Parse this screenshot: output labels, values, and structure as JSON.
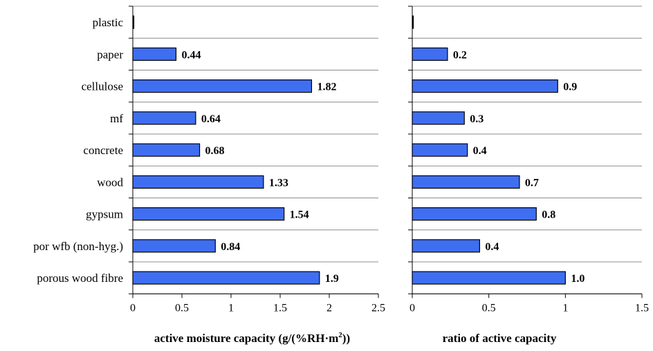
{
  "chart_data": [
    {
      "type": "bar",
      "orientation": "horizontal",
      "categories": [
        "plastic",
        "paper",
        "cellulose",
        "mf",
        "concrete",
        "wood",
        "gypsum",
        "por wfb (non-hyg.)",
        "porous wood fibre"
      ],
      "values": [
        0.0,
        0.44,
        1.82,
        0.64,
        0.68,
        1.33,
        1.54,
        0.84,
        1.9
      ],
      "value_labels": [
        "",
        "0.44",
        "1.82",
        "0.64",
        "0.68",
        "1.33",
        "1.54",
        "0.84",
        "1.9"
      ],
      "xlabel_main": "active moisture capacity (g/(%RH·m",
      "xlabel_sup": "2",
      "xlabel_tail": "))",
      "xlim": [
        0,
        2.5
      ],
      "xticks": [
        "0",
        "0.5",
        "1",
        "1.5",
        "2",
        "2.5"
      ],
      "bar_color": "#3f6ef0",
      "grid": "horizontal separators"
    },
    {
      "type": "bar",
      "orientation": "horizontal",
      "categories": [
        "plastic",
        "paper",
        "cellulose",
        "mf",
        "concrete",
        "wood",
        "gypsum",
        "por wfb (non-hyg.)",
        "porous wood fibre"
      ],
      "values": [
        0.0,
        0.23,
        0.95,
        0.34,
        0.36,
        0.7,
        0.81,
        0.44,
        1.0
      ],
      "value_labels": [
        "",
        "0.2",
        "0.9",
        "0.3",
        "0.4",
        "0.7",
        "0.8",
        "0.4",
        "1.0"
      ],
      "xlabel": "ratio of active capacity",
      "xlim": [
        0,
        1.5
      ],
      "xticks": [
        "0",
        "0.5",
        "1",
        "1.5"
      ],
      "bar_color": "#3f6ef0",
      "grid": "horizontal separators"
    }
  ]
}
